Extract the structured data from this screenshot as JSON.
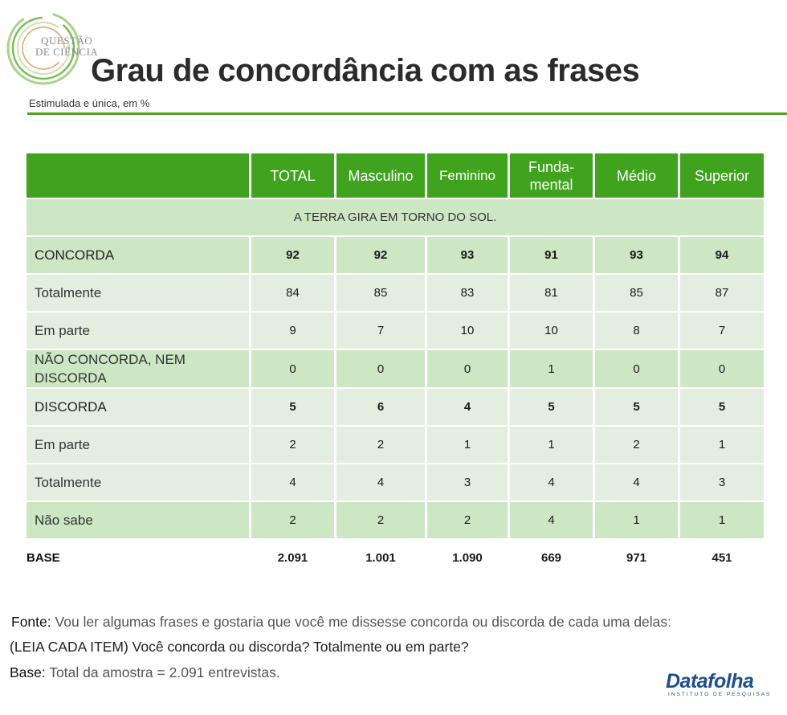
{
  "logo": {
    "line1": "QUESTÃO",
    "line2": "DE CIÊNCIA"
  },
  "title": "Grau de concordância com as frases",
  "subtitle": "Estimulada e única, em %",
  "table": {
    "headers": [
      "",
      "TOTAL",
      "Masculino",
      "Feminino",
      "Funda-\nmental",
      "Médio",
      "Superior"
    ],
    "section": "A TERRA GIRA EM TORNO DO SOL.",
    "rows": [
      {
        "label": "CONCORDA",
        "values": [
          "92",
          "92",
          "93",
          "91",
          "93",
          "94"
        ]
      },
      {
        "label": "Totalmente",
        "values": [
          "84",
          "85",
          "83",
          "81",
          "85",
          "87"
        ]
      },
      {
        "label": "Em parte",
        "values": [
          "9",
          "7",
          "10",
          "10",
          "8",
          "7"
        ]
      },
      {
        "label": "NÃO CONCORDA, NEM DISCORDA",
        "values": [
          "0",
          "0",
          "0",
          "1",
          "0",
          "0"
        ]
      },
      {
        "label": "DISCORDA",
        "values": [
          "5",
          "6",
          "4",
          "5",
          "5",
          "5"
        ]
      },
      {
        "label": "Em parte",
        "values": [
          "2",
          "2",
          "1",
          "1",
          "2",
          "1"
        ]
      },
      {
        "label": "Totalmente",
        "values": [
          "4",
          "4",
          "3",
          "4",
          "4",
          "3"
        ]
      },
      {
        "label": "Não sabe",
        "values": [
          "2",
          "2",
          "2",
          "4",
          "1",
          "1"
        ]
      },
      {
        "label": "BASE",
        "values": [
          "2.091",
          "1.001",
          "1.090",
          "669",
          "971",
          "451"
        ]
      }
    ]
  },
  "footer": {
    "fonte_key": "Fonte:",
    "fonte_text": "Vou ler algumas frases e gostaria que você me dissesse concorda ou discorda de cada uma delas:",
    "line2": "(LEIA CADA ITEM) Você concorda ou discorda? Totalmente ou em parte?",
    "base_key": "Base:",
    "base_text": "Total da amostra = 2.091 entrevistas."
  },
  "brand": {
    "name": "Datafolha",
    "tagline": "INSTITUTO DE PESQUISAS"
  },
  "colors": {
    "accent": "#3fa31d",
    "row_dark": "#cde6c4",
    "row_light": "#e4eee0",
    "brand": "#1d4f8f"
  }
}
